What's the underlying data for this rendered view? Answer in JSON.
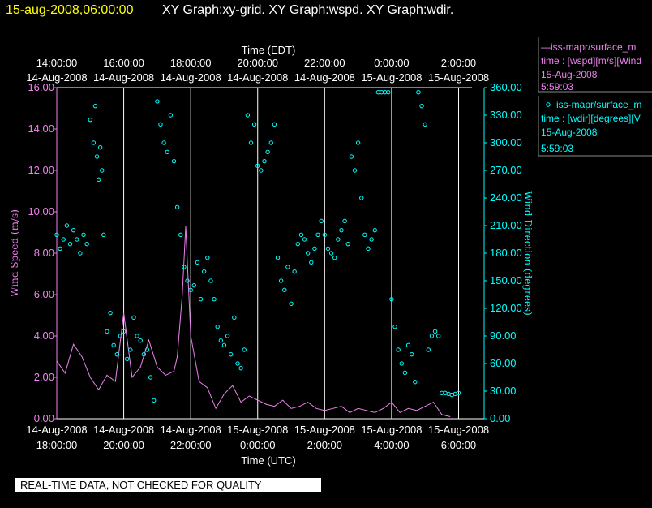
{
  "title": {
    "datetime": "15-aug-2008,06:00:00",
    "graphs": "XY Graph:xy-grid.  XY Graph:wspd.  XY Graph:wdir."
  },
  "legend": {
    "wspd": {
      "line1": "—iss-mapr/surface_m",
      "line2": "time : [wspd][m/s][Wind",
      "line3": "15-Aug-2008",
      "line4": "5:59:03"
    },
    "wdir": {
      "line1": "iss-mapr/surface_m",
      "line2": "time : [wdir][degrees][V",
      "line3": "15-Aug-2008",
      "line4": "5:59:03"
    }
  },
  "disclaimer": "REAL-TIME DATA, NOT CHECKED FOR QUALITY",
  "colors": {
    "wspd": "#ee82ee",
    "wdir": "#00ffff",
    "title_date": "#ffff00",
    "axis": "#ffffff"
  },
  "chart_data": {
    "type": "line",
    "x_unit": "hours UTC relative to 14-Aug-2008 00:00",
    "xlabel_bottom": "Time (UTC)",
    "xlabel_top": "Time (EDT)",
    "xlim": [
      18,
      30.4
    ],
    "ylabel_left": "Wind Speed (m/s)",
    "ylabel_right": "Wind Direction (degrees)",
    "ylim_left": [
      0,
      16
    ],
    "ylim_right": [
      0,
      360
    ],
    "bottom_ticks": [
      {
        "x": 18,
        "l1": "14-Aug-2008",
        "l2": "18:00:00"
      },
      {
        "x": 20,
        "l1": "14-Aug-2008",
        "l2": "20:00:00"
      },
      {
        "x": 22,
        "l1": "14-Aug-2008",
        "l2": "22:00:00"
      },
      {
        "x": 24,
        "l1": "15-Aug-2008",
        "l2": "0:00:00"
      },
      {
        "x": 26,
        "l1": "15-Aug-2008",
        "l2": "2:00:00"
      },
      {
        "x": 28,
        "l1": "15-Aug-2008",
        "l2": "4:00:00"
      },
      {
        "x": 30,
        "l1": "15-Aug-2008",
        "l2": "6:00:00"
      }
    ],
    "top_ticks": [
      {
        "x": 18,
        "l1": "14:00:00",
        "l2": "14-Aug-2008"
      },
      {
        "x": 20,
        "l1": "16:00:00",
        "l2": "14-Aug-2008"
      },
      {
        "x": 22,
        "l1": "18:00:00",
        "l2": "14-Aug-2008"
      },
      {
        "x": 24,
        "l1": "20:00:00",
        "l2": "14-Aug-2008"
      },
      {
        "x": 26,
        "l1": "22:00:00",
        "l2": "14-Aug-2008"
      },
      {
        "x": 28,
        "l1": "0:00:00",
        "l2": "15-Aug-2008"
      },
      {
        "x": 30,
        "l1": "2:00:00",
        "l2": "15-Aug-2008"
      }
    ],
    "left_ticks": [
      "0.00",
      "2.00",
      "4.00",
      "6.00",
      "8.00",
      "10.00",
      "12.00",
      "14.00",
      "16.00"
    ],
    "right_ticks": [
      "0.00",
      "30.00",
      "60.00",
      "90.00",
      "120.00",
      "150.00",
      "180.00",
      "210.00",
      "240.00",
      "270.00",
      "300.00",
      "330.00",
      "360.00"
    ],
    "grid_x": [
      20,
      22,
      24,
      26,
      28,
      30
    ],
    "series": [
      {
        "name": "iss-mapr/surface_m time : [wspd][m/s]",
        "axis": "left",
        "kind": "line",
        "x": [
          18.0,
          18.25,
          18.5,
          18.75,
          19.0,
          19.25,
          19.5,
          19.75,
          20.0,
          20.25,
          20.5,
          20.75,
          21.0,
          21.25,
          21.5,
          21.6,
          21.75,
          21.85,
          22.0,
          22.25,
          22.5,
          22.75,
          23.0,
          23.25,
          23.5,
          23.75,
          24.0,
          24.25,
          24.5,
          24.75,
          25.0,
          25.25,
          25.5,
          25.75,
          26.0,
          26.25,
          26.5,
          26.75,
          27.0,
          27.25,
          27.5,
          27.75,
          28.0,
          28.25,
          28.5,
          28.75,
          29.0,
          29.25,
          29.5,
          29.75
        ],
        "values": [
          2.8,
          2.2,
          3.6,
          3.0,
          2.0,
          1.4,
          2.1,
          1.8,
          5.1,
          2.0,
          2.5,
          3.8,
          2.5,
          2.1,
          2.3,
          3.0,
          6.0,
          9.3,
          4.0,
          1.8,
          1.5,
          0.5,
          1.2,
          1.6,
          0.8,
          1.1,
          0.9,
          0.7,
          0.6,
          0.9,
          0.5,
          0.6,
          0.8,
          0.5,
          0.4,
          0.5,
          0.6,
          0.3,
          0.5,
          0.4,
          0.3,
          0.5,
          0.8,
          0.3,
          0.5,
          0.4,
          0.6,
          0.8,
          0.2,
          0.1
        ]
      },
      {
        "name": "iss-mapr/surface_m time : [wdir][degrees]",
        "axis": "right",
        "kind": "scatter",
        "x": [
          18.0,
          18.1,
          18.2,
          18.3,
          18.4,
          18.5,
          18.6,
          18.7,
          18.8,
          18.9,
          19.0,
          19.1,
          19.15,
          19.2,
          19.25,
          19.3,
          19.35,
          19.4,
          19.5,
          19.6,
          19.7,
          19.8,
          19.9,
          20.0,
          20.1,
          20.2,
          20.3,
          20.4,
          20.5,
          20.6,
          20.7,
          20.8,
          20.9,
          21.0,
          21.1,
          21.2,
          21.3,
          21.4,
          21.5,
          21.6,
          21.7,
          21.8,
          21.9,
          22.0,
          22.1,
          22.2,
          22.3,
          22.4,
          22.5,
          22.6,
          22.7,
          22.8,
          22.9,
          23.0,
          23.1,
          23.2,
          23.3,
          23.4,
          23.5,
          23.6,
          23.7,
          23.8,
          23.9,
          24.0,
          24.1,
          24.2,
          24.3,
          24.4,
          24.5,
          24.6,
          24.7,
          24.8,
          24.9,
          25.0,
          25.1,
          25.2,
          25.3,
          25.4,
          25.5,
          25.6,
          25.7,
          25.8,
          25.9,
          26.0,
          26.1,
          26.2,
          26.3,
          26.4,
          26.5,
          26.6,
          26.7,
          26.8,
          26.9,
          27.0,
          27.1,
          27.2,
          27.3,
          27.4,
          27.5,
          27.6,
          27.7,
          27.8,
          27.9,
          28.0,
          28.1,
          28.2,
          28.3,
          28.4,
          28.5,
          28.6,
          28.7,
          28.8,
          28.9,
          29.0,
          29.1,
          29.2,
          29.3,
          29.4,
          29.5,
          29.6,
          29.7,
          29.8,
          29.9,
          30.0
        ],
        "values": [
          200,
          185,
          195,
          210,
          190,
          205,
          195,
          180,
          200,
          190,
          325,
          300,
          340,
          285,
          260,
          295,
          270,
          200,
          95,
          115,
          80,
          70,
          90,
          95,
          65,
          75,
          110,
          90,
          85,
          70,
          75,
          45,
          20,
          345,
          320,
          300,
          290,
          330,
          280,
          230,
          200,
          165,
          150,
          140,
          145,
          170,
          130,
          160,
          175,
          150,
          130,
          100,
          85,
          80,
          90,
          70,
          110,
          60,
          55,
          75,
          330,
          300,
          320,
          275,
          270,
          280,
          290,
          300,
          320,
          175,
          150,
          140,
          165,
          125,
          160,
          190,
          200,
          195,
          180,
          170,
          185,
          200,
          215,
          200,
          185,
          180,
          175,
          195,
          205,
          215,
          190,
          285,
          270,
          300,
          240,
          200,
          185,
          195,
          205,
          355,
          355,
          355,
          355,
          130,
          100,
          75,
          60,
          50,
          80,
          70,
          40,
          355,
          340,
          320,
          75,
          90,
          95,
          90,
          28,
          28,
          27,
          26,
          27,
          28
        ]
      }
    ]
  }
}
